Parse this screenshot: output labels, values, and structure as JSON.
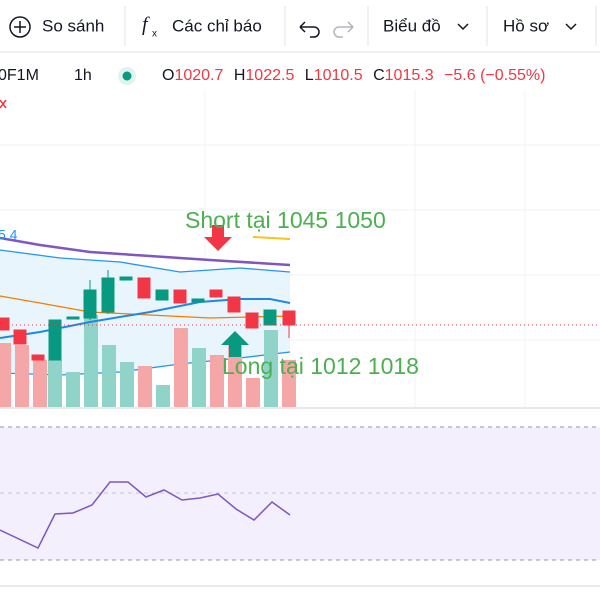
{
  "toolbar": {
    "compare": "So sánh",
    "indicators": "Các chỉ báo",
    "chart": "Biểu đồ",
    "profile": "Hồ sơ"
  },
  "legend": {
    "symbol": "0F1M",
    "interval": "1h",
    "o_label": "O",
    "o": "1020.7",
    "h_label": "H",
    "h": "1022.5",
    "l_label": "L",
    "l": "1010.5",
    "c_label": "C",
    "c": "1015.3",
    "change": "−5.6 (−0.55%)"
  },
  "band_value": "5.4",
  "annotations": {
    "short": "Short tại 1045 1050",
    "long": "Long tại 1012 1018"
  }
}
